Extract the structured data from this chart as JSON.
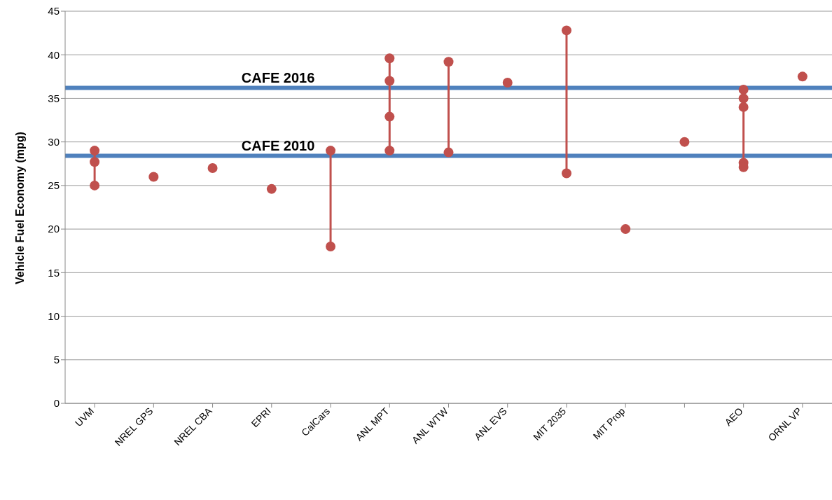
{
  "chart_data": {
    "type": "scatter",
    "ylabel": "Vehicle Fuel Economy (mpg)",
    "categories": [
      "UVM",
      "NREL GPS",
      "NREL CBA",
      "EPRI",
      "CalCars",
      "ANL MPT",
      "ANL WTW",
      "ANL EVS",
      "MIT 2035",
      "MIT Prop",
      null,
      "AEO",
      "ORNL VP"
    ],
    "series": [
      {
        "color": "#c0504d",
        "values": [
          29,
          26,
          27,
          24.6,
          29,
          39.6,
          39.2,
          36.8,
          42.8,
          20,
          30,
          36,
          37.5
        ]
      },
      {
        "color": "#c0504d",
        "values": [
          27.7,
          null,
          null,
          null,
          18,
          37,
          28.8,
          null,
          26.4,
          null,
          null,
          35,
          null
        ]
      },
      {
        "color": "#c0504d",
        "values": [
          25,
          null,
          null,
          null,
          null,
          32.9,
          null,
          null,
          null,
          null,
          null,
          34,
          null
        ]
      },
      {
        "color": "#c0504d",
        "values": [
          null,
          null,
          null,
          null,
          null,
          29,
          null,
          null,
          null,
          null,
          null,
          27.6,
          null
        ]
      },
      {
        "color": "#c0504d",
        "values": [
          null,
          null,
          null,
          null,
          null,
          null,
          null,
          null,
          null,
          null,
          null,
          27.1,
          null
        ]
      }
    ],
    "ylim": [
      0,
      45
    ],
    "yticks": [
      0,
      5,
      10,
      15,
      20,
      25,
      30,
      35,
      40,
      45
    ],
    "grid": "y",
    "marker": "circle",
    "ref_lines": [
      {
        "axis": "y",
        "value": 36.2,
        "label": "CAFE 2016",
        "color": "#4f81bd"
      },
      {
        "axis": "y",
        "value": 28.4,
        "label": "CAFE 2010",
        "color": "#4f81bd"
      }
    ]
  }
}
